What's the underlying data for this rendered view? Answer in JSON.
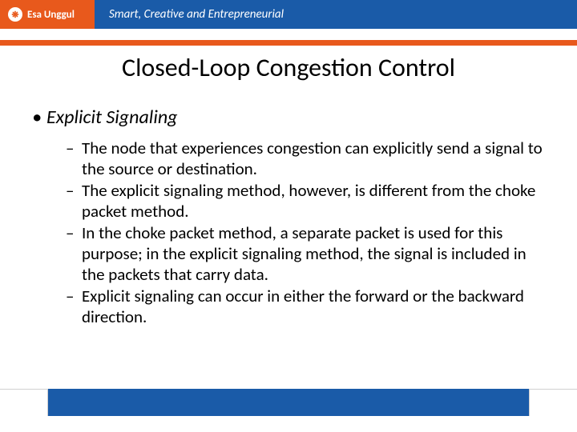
{
  "header": {
    "logo_text": "Esa Unggul",
    "tagline": "Smart, Creative and Entrepreneurial"
  },
  "title": "Closed-Loop Congestion Control",
  "section": {
    "heading": "Explicit Signaling",
    "points": [
      "The node that experiences congestion can explicitly send a signal to the source or destination.",
      "The explicit signaling method, however, is different from the choke packet method.",
      "In the choke packet method, a separate packet is used for this purpose; in the explicit signaling method, the signal is included in the packets that carry data.",
      "Explicit signaling can occur in either the forward or the backward direction."
    ]
  },
  "colors": {
    "header_blue": "#1a5ba8",
    "accent_orange": "#e8591c",
    "text": "#000000",
    "background": "#ffffff"
  }
}
